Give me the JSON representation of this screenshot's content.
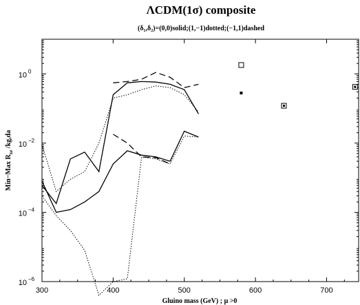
{
  "chart_data": {
    "type": "line",
    "title": "ΛCDM(1σ) composite",
    "subtitle": "(δ₁,δ₂)=(0,0)solid;(1,−1)dotted;(−1,1)dashed",
    "xlabel": "Gluino mass (GeV) ;  μ >0",
    "ylabel": "Min−Max R_xe /kg,da",
    "xlim": [
      300,
      745
    ],
    "ylim": [
      1e-06,
      10
    ],
    "yscale": "log",
    "grid": false,
    "x_ticks": [
      {
        "label": "300",
        "value": 300
      },
      {
        "label": "400",
        "value": 400
      },
      {
        "label": "500",
        "value": 500
      },
      {
        "label": "600",
        "value": 600
      },
      {
        "label": "700",
        "value": 700
      }
    ],
    "y_ticks": [
      {
        "label": "10",
        "exp": "−6",
        "value": 1e-06
      },
      {
        "label": "10",
        "exp": "−4",
        "value": 0.0001
      },
      {
        "label": "10",
        "exp": "−2",
        "value": 0.01
      },
      {
        "label": "10",
        "exp": "0",
        "value": 1
      }
    ],
    "series": [
      {
        "style": "solid",
        "x": [
          300,
          320,
          340,
          360,
          380,
          400,
          420,
          440,
          460,
          480,
          500,
          520
        ],
        "y": [
          0.0006,
          0.00018,
          0.0035,
          0.0055,
          0.0015,
          0.25,
          0.55,
          0.6,
          0.58,
          0.5,
          0.35,
          0.07
        ]
      },
      {
        "style": "solid",
        "x": [
          300,
          320,
          340,
          360,
          380,
          400,
          420,
          440,
          460,
          480,
          500,
          520
        ],
        "y": [
          0.0008,
          0.0001,
          0.00012,
          0.0002,
          0.0004,
          0.0025,
          0.006,
          0.0045,
          0.004,
          0.003,
          0.022,
          0.015
        ]
      },
      {
        "style": "dotted",
        "x": [
          300,
          320,
          340,
          360,
          380,
          400,
          420,
          440,
          460,
          480,
          500,
          520
        ],
        "y": [
          0.009,
          0.0004,
          0.0009,
          0.0015,
          0.01,
          0.2,
          0.25,
          0.35,
          0.45,
          0.4,
          0.25,
          0.08
        ]
      },
      {
        "style": "dotted",
        "x": [
          300,
          320,
          340,
          360,
          380,
          400,
          420,
          440,
          460,
          480,
          500,
          520
        ],
        "y": [
          0.0003,
          8e-05,
          3e-05,
          8e-06,
          4e-07,
          1e-06,
          1.2e-06,
          0.004,
          0.0035,
          0.0025,
          0.016,
          0.015
        ]
      },
      {
        "style": "dashed",
        "x": [
          400,
          420,
          440,
          460,
          480,
          500,
          520
        ],
        "y": [
          0.55,
          0.6,
          0.7,
          1.1,
          0.8,
          0.4,
          0.5
        ]
      },
      {
        "style": "dashed",
        "x": [
          400,
          420,
          440,
          460,
          480
        ],
        "y": [
          0.018,
          0.01,
          0.004,
          0.0038,
          0.0025
        ]
      }
    ],
    "markers": [
      {
        "x": 580,
        "y": 1.8,
        "style": "open-square"
      },
      {
        "x": 580,
        "y": 0.28,
        "style": "filled-square"
      },
      {
        "x": 640,
        "y": 0.12,
        "style": "dotted-square"
      },
      {
        "x": 740,
        "y": 0.42,
        "style": "dotted-square"
      }
    ]
  }
}
